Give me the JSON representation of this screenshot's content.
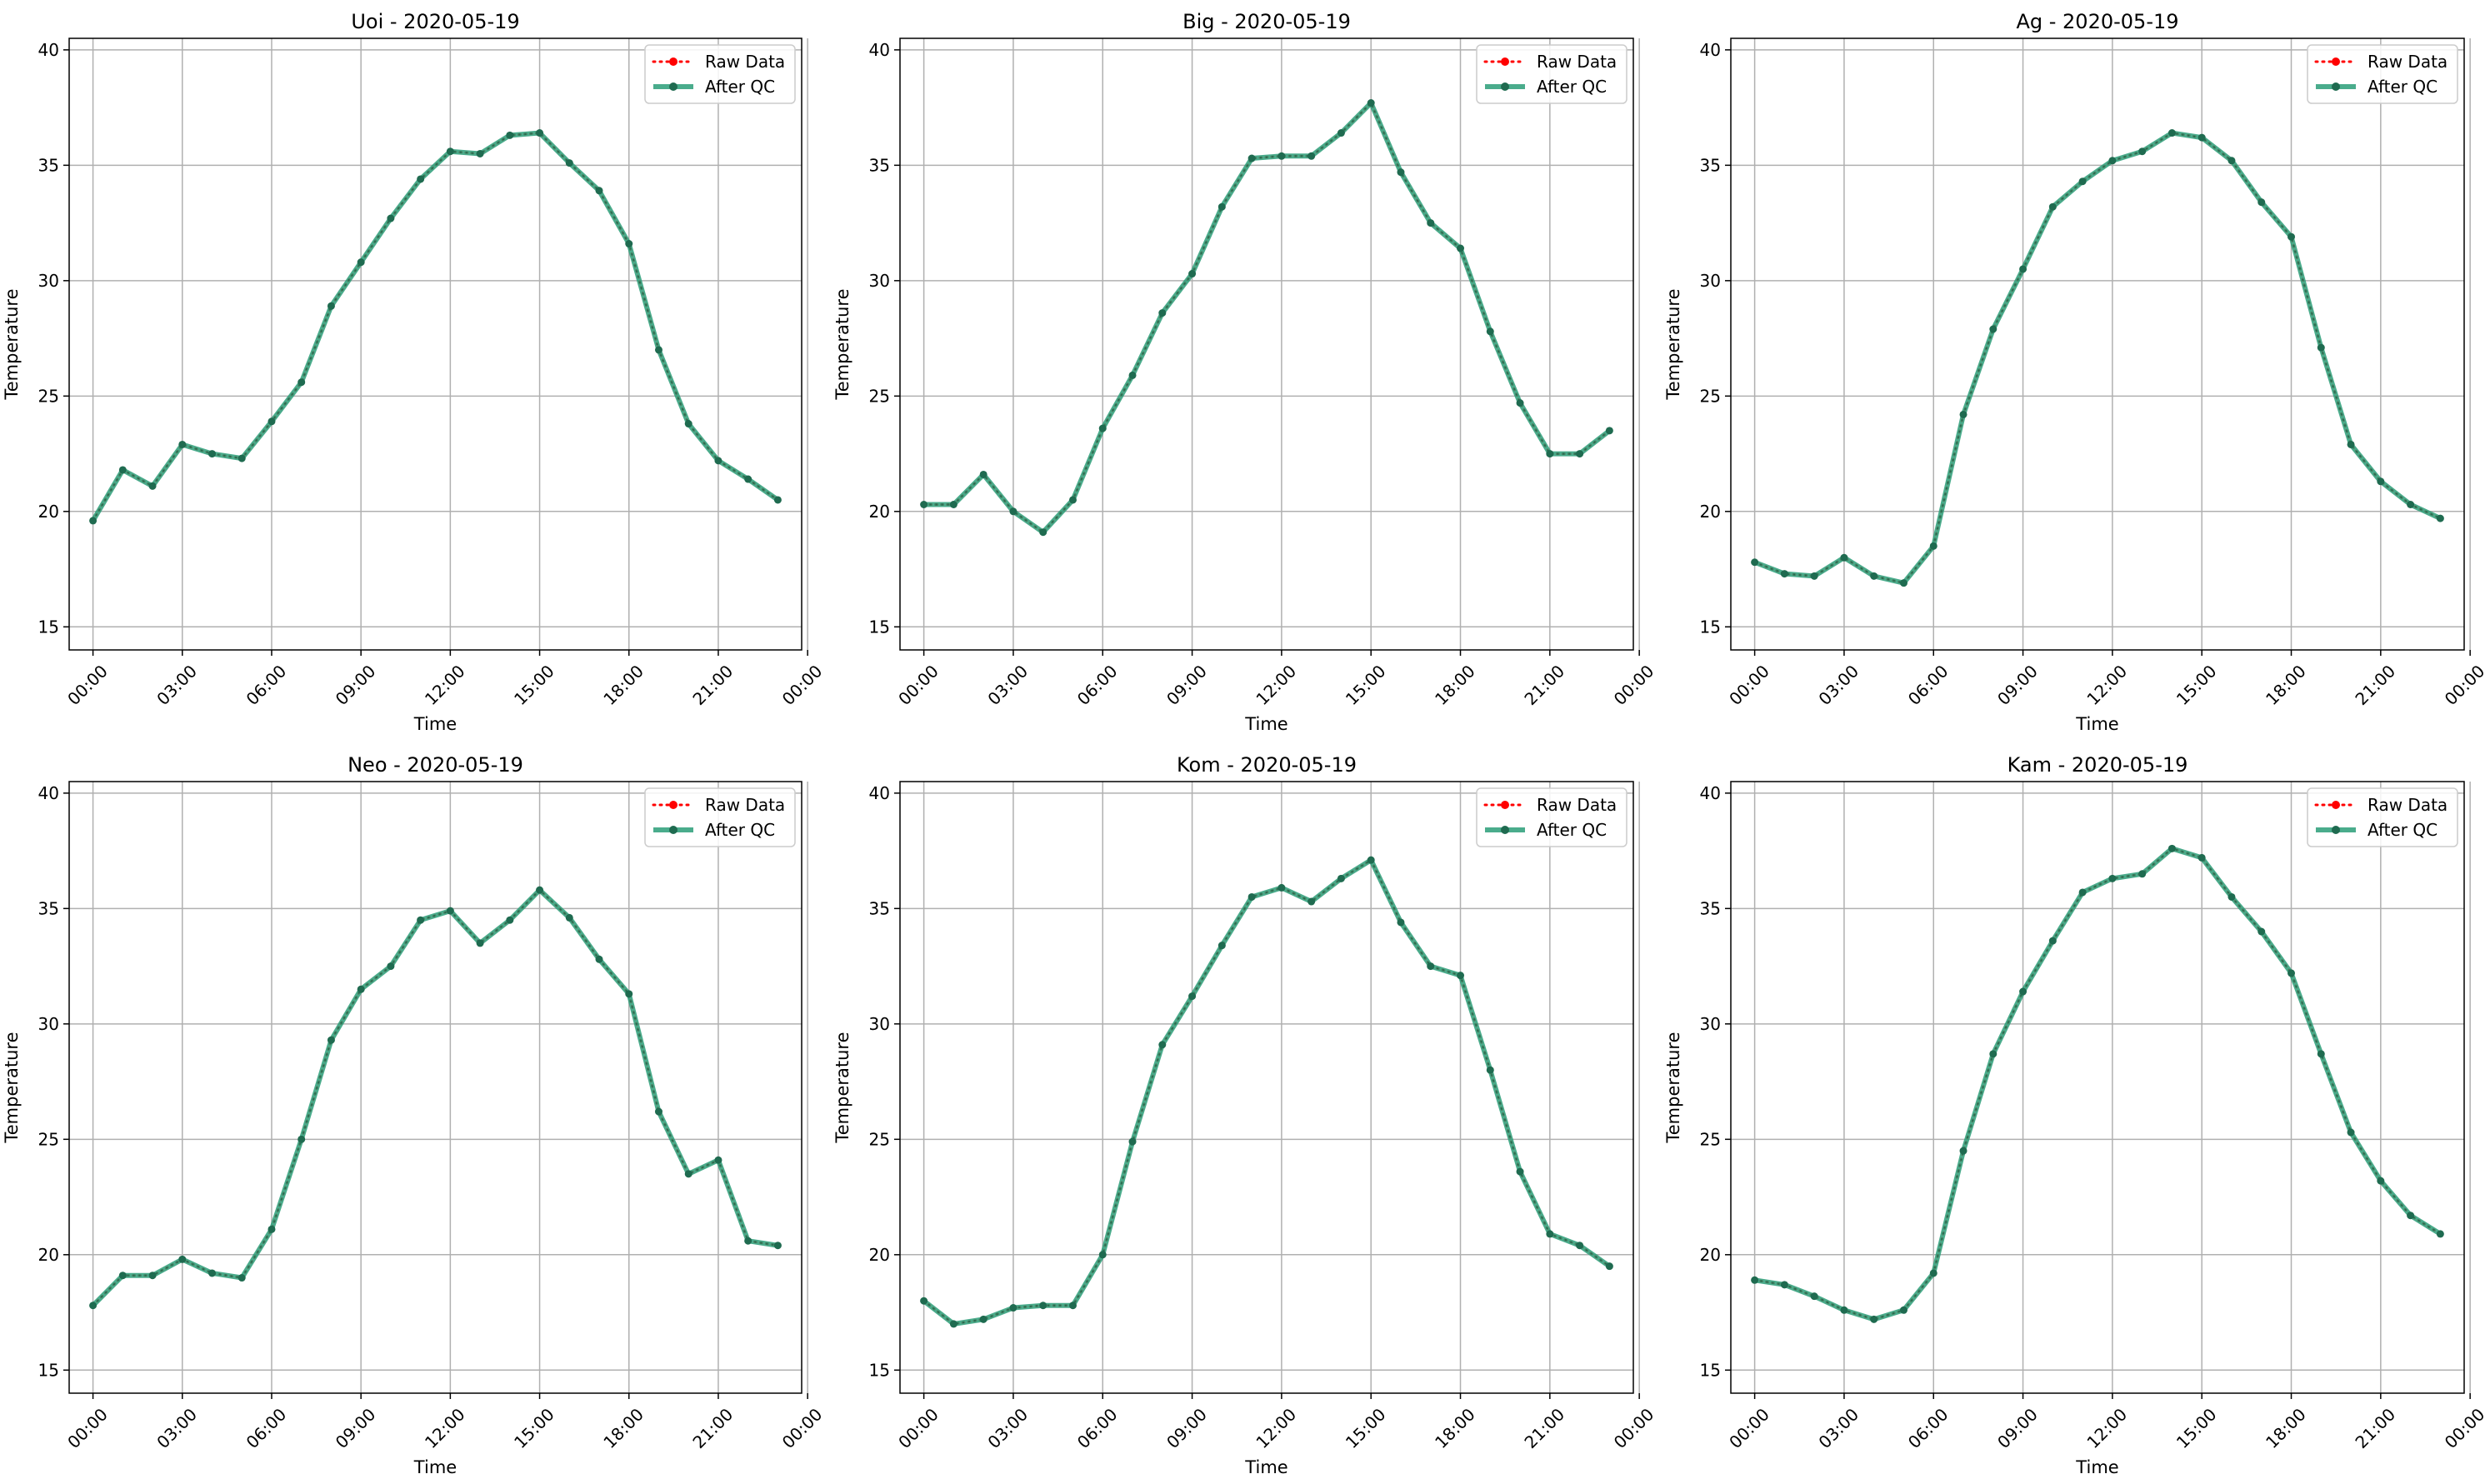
{
  "figure": {
    "legend_labels": {
      "raw": "Raw Data",
      "qc": "After QC"
    },
    "colors": {
      "raw": "#ff0000",
      "qc": "#2a9d78",
      "qc_marker": "#1f6b50",
      "grid": "#b0b0b0"
    },
    "legend_position": "upper right",
    "grid": true
  },
  "chart_data": [
    {
      "type": "line",
      "title": "Uoi - 2020-05-19",
      "xlabel": "Time",
      "ylabel": "Temperature",
      "ylim": [
        14,
        40.5
      ],
      "xlim": [
        -0.8,
        23.8
      ],
      "x_ticks": [
        "00:00",
        "03:00",
        "06:00",
        "09:00",
        "12:00",
        "15:00",
        "18:00",
        "21:00",
        "00:00"
      ],
      "y_ticks": [
        "15",
        "20",
        "25",
        "30",
        "35",
        "40"
      ],
      "hours": [
        0,
        1,
        2,
        3,
        4,
        5,
        6,
        7,
        8,
        9,
        10,
        11,
        12,
        13,
        14,
        15,
        16,
        17,
        18,
        19,
        20,
        21,
        22,
        23
      ],
      "series": [
        {
          "name": "Raw Data",
          "values": [
            19.6,
            21.8,
            21.1,
            22.9,
            22.5,
            22.3,
            23.9,
            25.6,
            28.9,
            30.8,
            32.7,
            34.4,
            35.6,
            35.5,
            36.3,
            36.4,
            35.1,
            33.9,
            31.6,
            27.0,
            23.8,
            22.2,
            21.4,
            20.5
          ]
        },
        {
          "name": "After QC",
          "values": [
            19.6,
            21.8,
            21.1,
            22.9,
            22.5,
            22.3,
            23.9,
            25.6,
            28.9,
            30.8,
            32.7,
            34.4,
            35.6,
            35.5,
            36.3,
            36.4,
            35.1,
            33.9,
            31.6,
            27.0,
            23.8,
            22.2,
            21.4,
            20.5
          ]
        }
      ]
    },
    {
      "type": "line",
      "title": "Big - 2020-05-19",
      "xlabel": "Time",
      "ylabel": "Temperature",
      "ylim": [
        14,
        40.5
      ],
      "xlim": [
        -0.8,
        23.8
      ],
      "x_ticks": [
        "00:00",
        "03:00",
        "06:00",
        "09:00",
        "12:00",
        "15:00",
        "18:00",
        "21:00",
        "00:00"
      ],
      "y_ticks": [
        "15",
        "20",
        "25",
        "30",
        "35",
        "40"
      ],
      "hours": [
        0,
        1,
        2,
        3,
        4,
        5,
        6,
        7,
        8,
        9,
        10,
        11,
        12,
        13,
        14,
        15,
        16,
        17,
        18,
        19,
        20,
        21,
        22,
        23
      ],
      "series": [
        {
          "name": "Raw Data",
          "values": [
            20.3,
            20.3,
            21.6,
            20.0,
            19.1,
            20.5,
            23.6,
            25.9,
            28.6,
            30.3,
            33.2,
            35.3,
            35.4,
            35.4,
            36.4,
            37.7,
            34.7,
            32.5,
            31.4,
            27.8,
            24.7,
            22.5,
            22.5,
            23.5
          ]
        },
        {
          "name": "After QC",
          "values": [
            20.3,
            20.3,
            21.6,
            20.0,
            19.1,
            20.5,
            23.6,
            25.9,
            28.6,
            30.3,
            33.2,
            35.3,
            35.4,
            35.4,
            36.4,
            37.7,
            34.7,
            32.5,
            31.4,
            27.8,
            24.7,
            22.5,
            22.5,
            23.5
          ]
        }
      ]
    },
    {
      "type": "line",
      "title": "Ag - 2020-05-19",
      "xlabel": "Time",
      "ylabel": "Temperature",
      "ylim": [
        14,
        40.5
      ],
      "xlim": [
        -0.8,
        23.8
      ],
      "x_ticks": [
        "00:00",
        "03:00",
        "06:00",
        "09:00",
        "12:00",
        "15:00",
        "18:00",
        "21:00",
        "00:00"
      ],
      "y_ticks": [
        "15",
        "20",
        "25",
        "30",
        "35",
        "40"
      ],
      "hours": [
        0,
        1,
        2,
        3,
        4,
        5,
        6,
        7,
        8,
        9,
        10,
        11,
        12,
        13,
        14,
        15,
        16,
        17,
        18,
        19,
        20,
        21,
        22,
        23
      ],
      "series": [
        {
          "name": "Raw Data",
          "values": [
            17.8,
            17.3,
            17.2,
            18.0,
            17.2,
            16.9,
            18.5,
            24.2,
            27.9,
            30.5,
            33.2,
            34.3,
            35.2,
            35.6,
            36.4,
            36.2,
            35.2,
            33.4,
            31.9,
            27.1,
            22.9,
            21.3,
            20.3,
            19.7
          ]
        },
        {
          "name": "After QC",
          "values": [
            17.8,
            17.3,
            17.2,
            18.0,
            17.2,
            16.9,
            18.5,
            24.2,
            27.9,
            30.5,
            33.2,
            34.3,
            35.2,
            35.6,
            36.4,
            36.2,
            35.2,
            33.4,
            31.9,
            27.1,
            22.9,
            21.3,
            20.3,
            19.7
          ]
        }
      ]
    },
    {
      "type": "line",
      "title": "Neo - 2020-05-19",
      "xlabel": "Time",
      "ylabel": "Temperature",
      "ylim": [
        14,
        40.5
      ],
      "xlim": [
        -0.8,
        23.8
      ],
      "x_ticks": [
        "00:00",
        "03:00",
        "06:00",
        "09:00",
        "12:00",
        "15:00",
        "18:00",
        "21:00",
        "00:00"
      ],
      "y_ticks": [
        "15",
        "20",
        "25",
        "30",
        "35",
        "40"
      ],
      "hours": [
        0,
        1,
        2,
        3,
        4,
        5,
        6,
        7,
        8,
        9,
        10,
        11,
        12,
        13,
        14,
        15,
        16,
        17,
        18,
        19,
        20,
        21,
        22,
        23
      ],
      "series": [
        {
          "name": "Raw Data",
          "values": [
            17.8,
            19.1,
            19.1,
            19.8,
            19.2,
            19.0,
            21.1,
            25.0,
            29.3,
            31.5,
            32.5,
            34.5,
            34.9,
            33.5,
            34.5,
            35.8,
            34.6,
            32.8,
            31.3,
            26.2,
            23.5,
            24.1,
            20.6,
            20.4
          ]
        },
        {
          "name": "After QC",
          "values": [
            17.8,
            19.1,
            19.1,
            19.8,
            19.2,
            19.0,
            21.1,
            25.0,
            29.3,
            31.5,
            32.5,
            34.5,
            34.9,
            33.5,
            34.5,
            35.8,
            34.6,
            32.8,
            31.3,
            26.2,
            23.5,
            24.1,
            20.6,
            20.4
          ]
        }
      ]
    },
    {
      "type": "line",
      "title": "Kom - 2020-05-19",
      "xlabel": "Time",
      "ylabel": "Temperature",
      "ylim": [
        14,
        40.5
      ],
      "xlim": [
        -0.8,
        23.8
      ],
      "x_ticks": [
        "00:00",
        "03:00",
        "06:00",
        "09:00",
        "12:00",
        "15:00",
        "18:00",
        "21:00",
        "00:00"
      ],
      "y_ticks": [
        "15",
        "20",
        "25",
        "30",
        "35",
        "40"
      ],
      "hours": [
        0,
        1,
        2,
        3,
        4,
        5,
        6,
        7,
        8,
        9,
        10,
        11,
        12,
        13,
        14,
        15,
        16,
        17,
        18,
        19,
        20,
        21,
        22,
        23
      ],
      "series": [
        {
          "name": "Raw Data",
          "values": [
            18.0,
            17.0,
            17.2,
            17.7,
            17.8,
            17.8,
            20.0,
            24.9,
            29.1,
            31.2,
            33.4,
            35.5,
            35.9,
            35.3,
            36.3,
            37.1,
            34.4,
            32.5,
            32.1,
            28.0,
            23.6,
            20.9,
            20.4,
            19.5
          ]
        },
        {
          "name": "After QC",
          "values": [
            18.0,
            17.0,
            17.2,
            17.7,
            17.8,
            17.8,
            20.0,
            24.9,
            29.1,
            31.2,
            33.4,
            35.5,
            35.9,
            35.3,
            36.3,
            37.1,
            34.4,
            32.5,
            32.1,
            28.0,
            23.6,
            20.9,
            20.4,
            19.5
          ]
        }
      ]
    },
    {
      "type": "line",
      "title": "Kam - 2020-05-19",
      "xlabel": "Time",
      "ylabel": "Temperature",
      "ylim": [
        14,
        40.5
      ],
      "xlim": [
        -0.8,
        23.8
      ],
      "x_ticks": [
        "00:00",
        "03:00",
        "06:00",
        "09:00",
        "12:00",
        "15:00",
        "18:00",
        "21:00",
        "00:00"
      ],
      "y_ticks": [
        "15",
        "20",
        "25",
        "30",
        "35",
        "40"
      ],
      "hours": [
        0,
        1,
        2,
        3,
        4,
        5,
        6,
        7,
        8,
        9,
        10,
        11,
        12,
        13,
        14,
        15,
        16,
        17,
        18,
        19,
        20,
        21,
        22,
        23
      ],
      "series": [
        {
          "name": "Raw Data",
          "values": [
            18.9,
            18.7,
            18.2,
            17.6,
            17.2,
            17.6,
            19.2,
            24.5,
            28.7,
            31.4,
            33.6,
            35.7,
            36.3,
            36.5,
            37.6,
            37.2,
            35.5,
            34.0,
            32.2,
            28.7,
            25.3,
            23.2,
            21.7,
            20.9
          ]
        },
        {
          "name": "After QC",
          "values": [
            18.9,
            18.7,
            18.2,
            17.6,
            17.2,
            17.6,
            19.2,
            24.5,
            28.7,
            31.4,
            33.6,
            35.7,
            36.3,
            36.5,
            37.6,
            37.2,
            35.5,
            34.0,
            32.2,
            28.7,
            25.3,
            23.2,
            21.7,
            20.9
          ]
        }
      ]
    }
  ]
}
